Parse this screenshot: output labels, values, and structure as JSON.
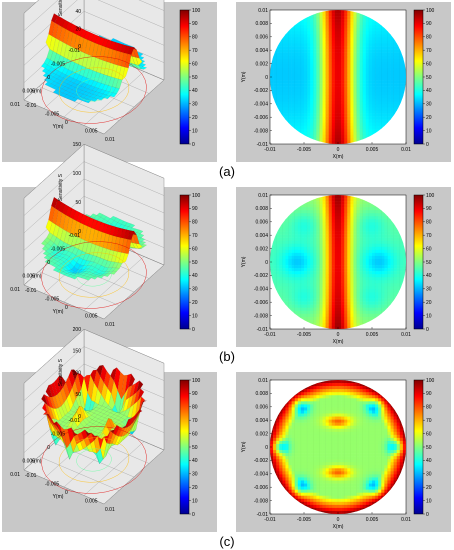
{
  "colors": {
    "panel_bg": "#c8c8c8",
    "plot_bg": "#ffffff",
    "axis": "#000000",
    "grid": "#8a8a8a",
    "cmap": [
      "#00008f",
      "#0000ff",
      "#0080ff",
      "#00ffff",
      "#80ff80",
      "#ffff00",
      "#ff8000",
      "#ff0000",
      "#800000"
    ]
  },
  "colorbar_ticks": [
    "0",
    "10",
    "20",
    "30",
    "40",
    "50",
    "60",
    "70",
    "80",
    "90",
    "100"
  ],
  "xy_ticks": [
    "0.01",
    "0.008",
    "0.006",
    "0.004",
    "0.002",
    "0",
    "-0.002",
    "-0.004",
    "-0.006",
    "-0.008",
    "-0.01"
  ],
  "x_ticks_bottom": [
    "-0.01",
    "-0.005",
    "0",
    "0.005",
    "0.01"
  ],
  "chart_data": [
    {
      "type": "surface3d",
      "caption": "(a)",
      "zlabel": "Sensitivity S",
      "xlabel": "X(m)",
      "ylabel": "Y(m)",
      "z_ticks": [
        "0",
        "20",
        "40",
        "60",
        "80",
        "100"
      ],
      "x_ticks": [
        "0.01",
        "0.005",
        "0",
        "-0.005",
        "-0.01"
      ],
      "y_ticks": [
        "-0.01",
        "-0.005",
        "0",
        "0.005",
        "0.01"
      ],
      "clim": [
        0,
        100
      ],
      "pattern": "vertical-band"
    },
    {
      "type": "heatmap",
      "caption": "(a)",
      "xlabel": "X(m)",
      "ylabel": "Y(m)",
      "xlim": [
        -0.01,
        0.01
      ],
      "ylim": [
        -0.01,
        0.01
      ],
      "clim": [
        0,
        100
      ],
      "pattern": "vertical-band"
    },
    {
      "type": "surface3d",
      "caption": "(b)",
      "zlabel": "Sensitivity S",
      "xlabel": "X(m)",
      "ylabel": "Y(m)",
      "z_ticks": [
        "0",
        "50",
        "100",
        "150"
      ],
      "x_ticks": [
        "0.01",
        "0.005",
        "0",
        "-0.005",
        "-0.01"
      ],
      "y_ticks": [
        "-0.01",
        "-0.005",
        "0",
        "0.005",
        "0.01"
      ],
      "clim": [
        0,
        100
      ],
      "pattern": "band-with-lobes"
    },
    {
      "type": "heatmap",
      "caption": "(b)",
      "xlabel": "X(m)",
      "ylabel": "Y(m)",
      "xlim": [
        -0.01,
        0.01
      ],
      "ylim": [
        -0.01,
        0.01
      ],
      "clim": [
        0,
        100
      ],
      "pattern": "band-with-lobes"
    },
    {
      "type": "surface3d",
      "caption": "(c)",
      "zlabel": "Sensitivity S",
      "xlabel": "X(m)",
      "ylabel": "Y(m)",
      "z_ticks": [
        "0",
        "50",
        "100",
        "150",
        "200"
      ],
      "x_ticks": [
        "0.01",
        "0.005",
        "0",
        "-0.005",
        "-0.01"
      ],
      "y_ticks": [
        "-0.01",
        "-0.005",
        "0",
        "0.005",
        "0.01"
      ],
      "clim": [
        0,
        100
      ],
      "pattern": "ring-with-islands"
    },
    {
      "type": "heatmap",
      "caption": "(c)",
      "xlabel": "X(m)",
      "ylabel": "Y(m)",
      "xlim": [
        -0.01,
        0.01
      ],
      "ylim": [
        -0.01,
        0.01
      ],
      "clim": [
        0,
        100
      ],
      "pattern": "ring-with-islands"
    }
  ]
}
